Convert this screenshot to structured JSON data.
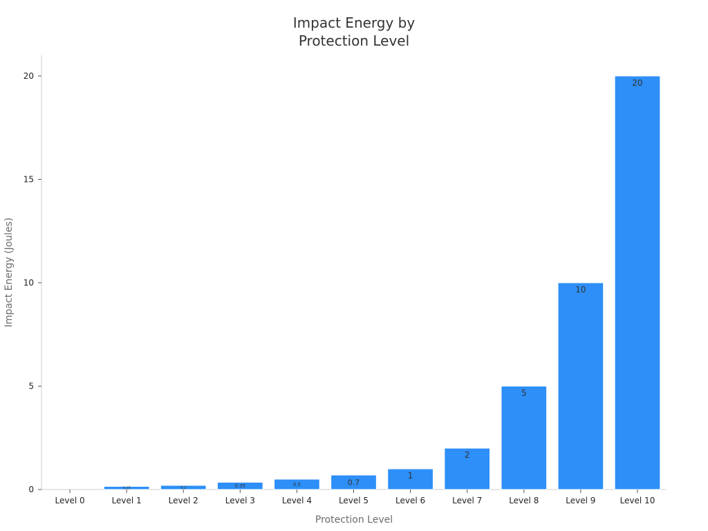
{
  "chart_data": {
    "type": "bar",
    "title_lines": [
      "Impact Energy by",
      "Protection Level"
    ],
    "xlabel": "Protection Level",
    "ylabel": "Impact Energy (Joules)",
    "categories": [
      "Level 0",
      "Level 1",
      "Level 2",
      "Level 3",
      "Level 4",
      "Level 5",
      "Level 6",
      "Level 7",
      "Level 8",
      "Level 9",
      "Level 10"
    ],
    "values": [
      0,
      0.15,
      0.2,
      0.35,
      0.5,
      0.7,
      1,
      2,
      5,
      10,
      20
    ],
    "data_labels": [
      "",
      "0.15",
      "0.2",
      "0.35",
      "0.5",
      "0.7",
      "1",
      "2",
      "5",
      "10",
      "20"
    ],
    "ylim": [
      0,
      21
    ],
    "yticks": [
      0,
      5,
      10,
      15,
      20
    ],
    "grid": false,
    "legend": "none",
    "bar_color": "#2d8ff7"
  }
}
